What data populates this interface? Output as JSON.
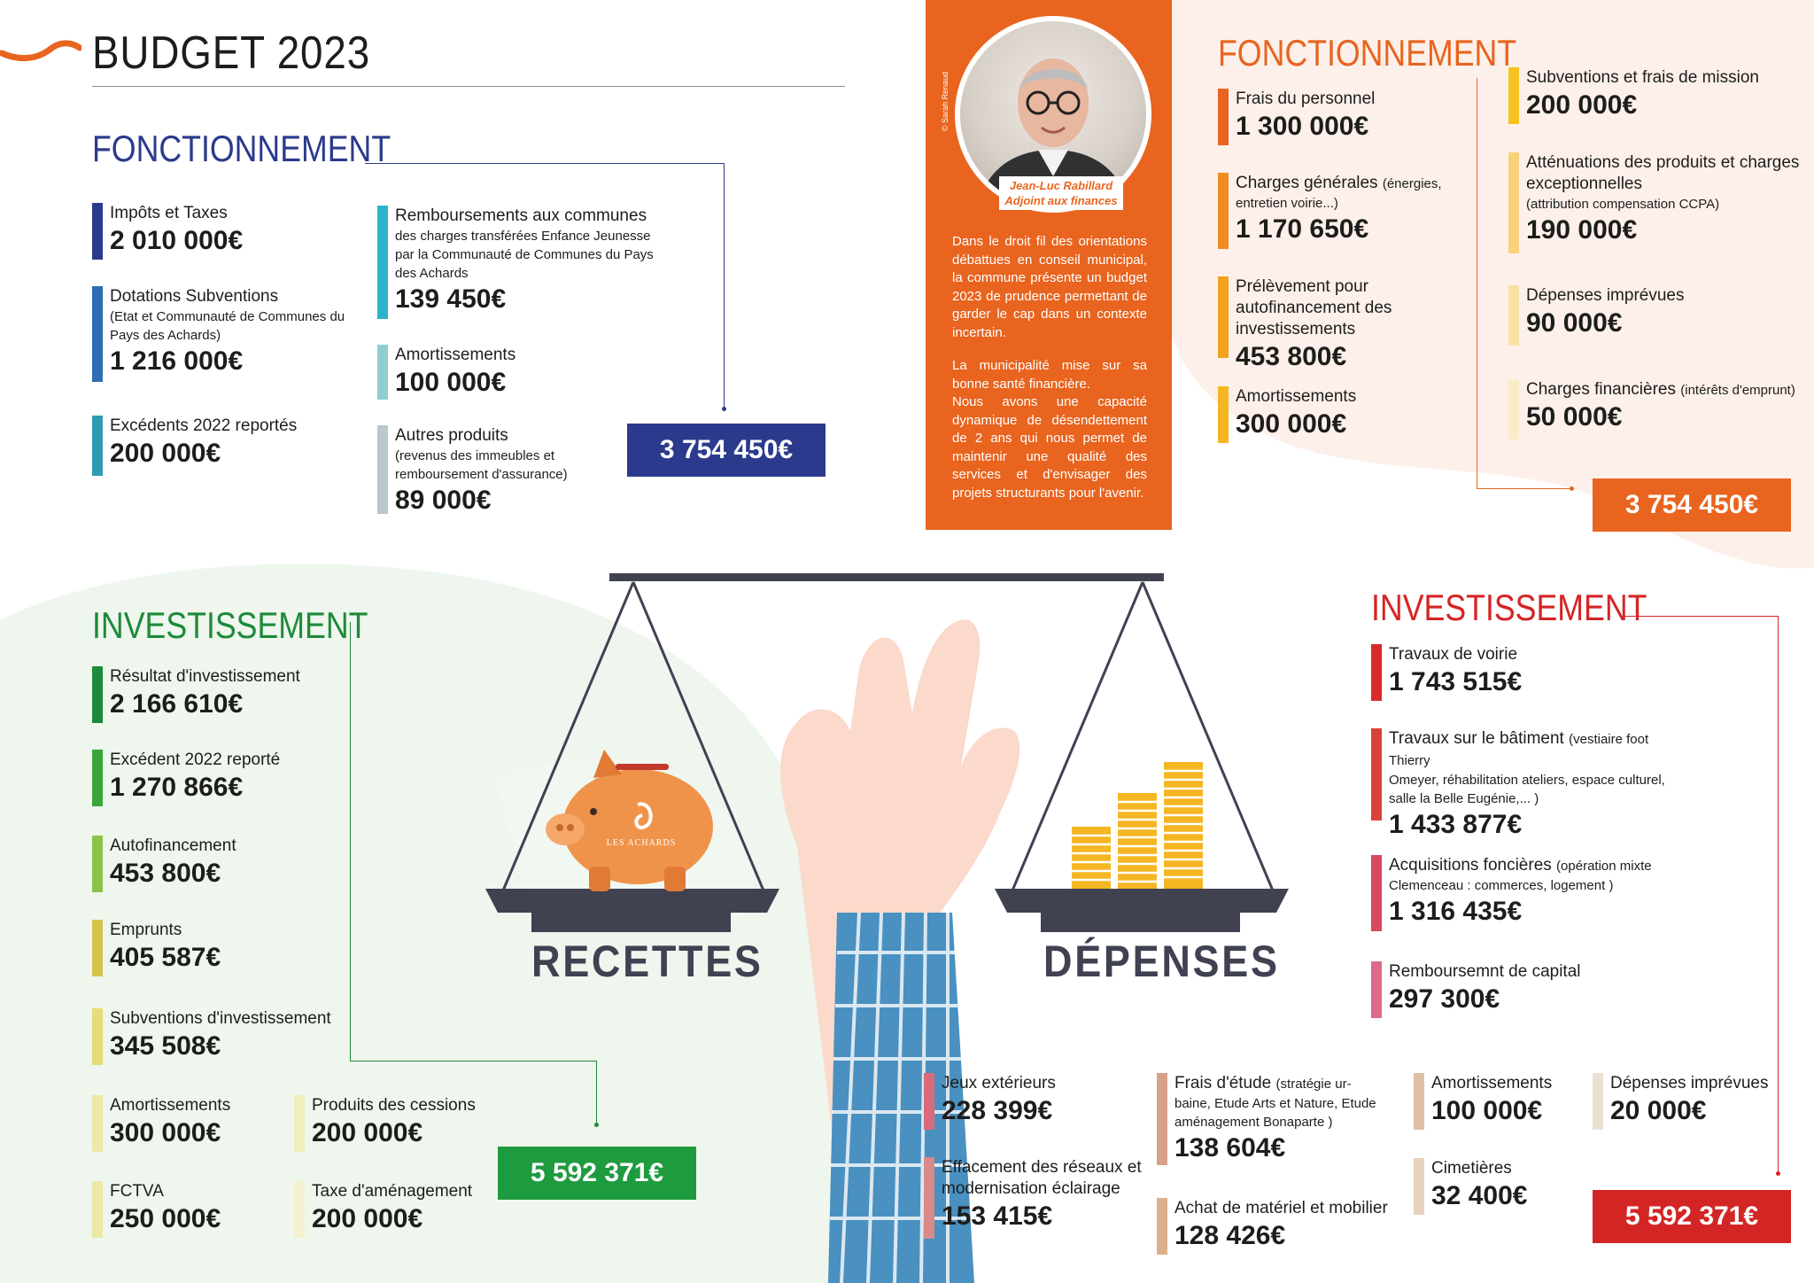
{
  "header": {
    "title": "BUDGET 2023"
  },
  "recettes": {
    "fonctionnement": {
      "title": "FONCTIONNEMENT",
      "items": [
        {
          "label": "Impôts et Taxes",
          "sub": "",
          "amount": "2 010 000€",
          "color": "#2b3a8c"
        },
        {
          "label": "Dotations Subventions",
          "sub": "(Etat et Communauté de Communes du Pays des Achards)",
          "amount": "1 216 000€",
          "color": "#2e6cb5"
        },
        {
          "label": "Excédents 2022 reportés",
          "sub": "",
          "amount": "200 000€",
          "color": "#2d9cb3"
        },
        {
          "label": "Remboursements aux communes",
          "sub": "des charges transférées Enfance Jeunesse par la Communauté de Communes du Pays des Achards",
          "amount": "139 450€",
          "color": "#2db3c9"
        },
        {
          "label": "Amortissements",
          "sub": "",
          "amount": "100 000€",
          "color": "#8fcfcf"
        },
        {
          "label": "Autres produits",
          "sub": "(revenus des immeubles et remboursement d'assurance)",
          "amount": "89 000€",
          "color": "#b9c8ca"
        }
      ],
      "total": "3 754 450€",
      "total_color": "#2b3a8c"
    },
    "investissement": {
      "title": "INVESTISSEMENT",
      "items": [
        {
          "label": "Résultat d'investissement",
          "sub": "",
          "amount": "2 166 610€",
          "color": "#1e8a3a"
        },
        {
          "label": "Excédent 2022 reporté",
          "sub": "",
          "amount": "1 270 866€",
          "color": "#3aa63a"
        },
        {
          "label": "Autofinancement",
          "sub": "",
          "amount": "453 800€",
          "color": "#8bc34a"
        },
        {
          "label": "Emprunts",
          "sub": "",
          "amount": "405 587€",
          "color": "#d5c34a"
        },
        {
          "label": "Subventions d'investissement",
          "sub": "",
          "amount": "345 508€",
          "color": "#e3dc78"
        },
        {
          "label": "Amortissements",
          "sub": "",
          "amount": "300 000€",
          "color": "#ece8a6"
        },
        {
          "label": "Produits des cessions",
          "sub": "",
          "amount": "200 000€",
          "color": "#f0edbe"
        },
        {
          "label": "FCTVA",
          "sub": "",
          "amount": "250 000€",
          "color": "#ece8a6"
        },
        {
          "label": "Taxe d'aménagement",
          "sub": "",
          "amount": "200 000€",
          "color": "#f3f1cf"
        }
      ],
      "total": "5 592 371€",
      "total_color": "#1f9b3f"
    }
  },
  "depenses": {
    "fonctionnement": {
      "title": "FONCTIONNEMENT",
      "items": [
        {
          "label": "Frais du personnel",
          "sub": "",
          "amount": "1 300 000€",
          "color": "#e8641f"
        },
        {
          "label": "Charges générales",
          "label_note": "(énergies,",
          "sub": "entretien voirie...)",
          "amount": "1 170 650€",
          "color": "#f08a24"
        },
        {
          "label": "Prélèvement pour autofinancement des investissements",
          "sub": "",
          "amount": "453 800€",
          "color": "#f2a21e"
        },
        {
          "label": "Amortissements",
          "sub": "",
          "amount": "300 000€",
          "color": "#f5b623"
        },
        {
          "label": "Subventions et frais de mission",
          "sub": "",
          "amount": "200 000€",
          "color": "#f6c21f"
        },
        {
          "label": "Atténuations des produits et charges exceptionnelles",
          "sub": "(attribution compensation CCPA)",
          "amount": "190 000€",
          "color": "#f7d27a"
        },
        {
          "label": "Dépenses imprévues",
          "sub": "",
          "amount": "90 000€",
          "color": "#f9e0a4"
        },
        {
          "label": "Charges financières",
          "label_note": "(intérêts d'emprunt)",
          "sub": "",
          "amount": "50 000€",
          "color": "#fbecc9"
        }
      ],
      "total": "3 754 450€",
      "total_color": "#e8641f"
    },
    "investissement": {
      "title": "INVESTISSEMENT",
      "items": [
        {
          "label": "Travaux de voirie",
          "sub": "",
          "amount": "1 743 515€",
          "color": "#d72a2a"
        },
        {
          "label": "Travaux sur le bâtiment",
          "label_note": "(vestiaire foot Thierry",
          "sub": "Omeyer, réhabilitation ateliers, espace culturel, salle la Belle Eugénie,... )",
          "amount": "1 433 877€",
          "color": "#d9423a"
        },
        {
          "label": "Acquisitions foncières",
          "label_note": "(opération mixte",
          "sub": "Clemenceau : commerces, logement )",
          "amount": "1 316 435€",
          "color": "#d84a5e"
        },
        {
          "label": "Remboursemnt de capital",
          "sub": "",
          "amount": "297 300€",
          "color": "#de6a8a"
        },
        {
          "label": "Jeux extérieurs",
          "sub": "",
          "amount": "228 399€",
          "color": "#d96a7a"
        },
        {
          "label": "Effacement des réseaux et modernisation éclairage",
          "sub": "",
          "amount": "153 415€",
          "color": "#d88a8a"
        },
        {
          "label": "Frais d'étude",
          "label_note": "(stratégie ur-",
          "sub": "baine, Etude Arts et Nature, Etude aménagement Bonaparte )",
          "amount": "138 604€",
          "color": "#d9a08a"
        },
        {
          "label": "Achat de matériel et mobilier",
          "sub": "",
          "amount": "128 426€",
          "color": "#dcb08a"
        },
        {
          "label": "Amortissements",
          "sub": "",
          "amount": "100 000€",
          "color": "#dec0a4"
        },
        {
          "label": "Cimetières",
          "sub": "",
          "amount": "32 400€",
          "color": "#e6d2bd"
        },
        {
          "label": "Dépenses imprévues",
          "sub": "",
          "amount": "20 000€",
          "color": "#ece0d2"
        }
      ],
      "total": "5 592 371€",
      "total_color": "#d42525"
    }
  },
  "adjoint": {
    "name": "Jean-Luc Rabillard",
    "role": "Adjoint aux finances",
    "photo_credit": "© Sarah Renaud",
    "paragraph1": "Dans le droit fil des orientations débattues en conseil municipal, la commune présente un budget 2023 de prudence permettant de garder le cap dans un contexte incertain.",
    "paragraph2": "La municipalité mise sur sa bonne santé financière.",
    "paragraph3": "Nous avons une capacité dynamique de désendettement de 2 ans qui nous permet de maintenir une qualité des services et d'envisager des projets structurants pour l'avenir."
  },
  "scale": {
    "left_label": "RECETTES",
    "right_label": "DÉPENSES",
    "piggy_brand": "LES ACHARDS"
  }
}
